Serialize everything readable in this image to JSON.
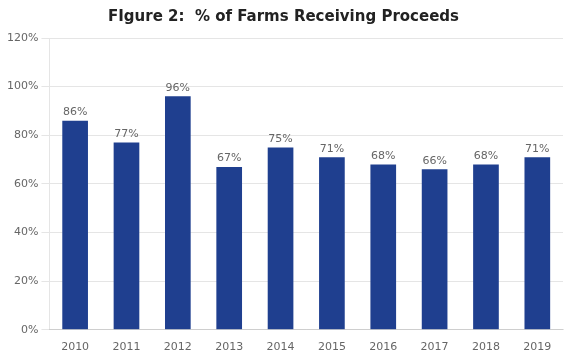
{
  "chart_data": {
    "type": "bar",
    "title": "FIgure 2:  % of Farms Receiving Proceeds",
    "categories": [
      "2010",
      "2011",
      "2012",
      "2013",
      "2014",
      "2015",
      "2016",
      "2017",
      "2018",
      "2019"
    ],
    "values": [
      86,
      77,
      96,
      67,
      75,
      71,
      68,
      66,
      68,
      71
    ],
    "value_labels": [
      "86%",
      "77%",
      "96%",
      "67%",
      "75%",
      "71%",
      "68%",
      "66%",
      "68%",
      "71%"
    ],
    "data_labels": true,
    "color": "#1F3F8F",
    "ylim": [
      0,
      120
    ],
    "yticks": [
      {
        "value": 0,
        "label": "0%"
      },
      {
        "value": 20,
        "label": "20%"
      },
      {
        "value": 40,
        "label": "40%"
      },
      {
        "value": 60,
        "label": "60%"
      },
      {
        "value": 80,
        "label": "80%"
      },
      {
        "value": 100,
        "label": "100%"
      },
      {
        "value": 120,
        "label": "120%"
      }
    ],
    "grid": true
  }
}
